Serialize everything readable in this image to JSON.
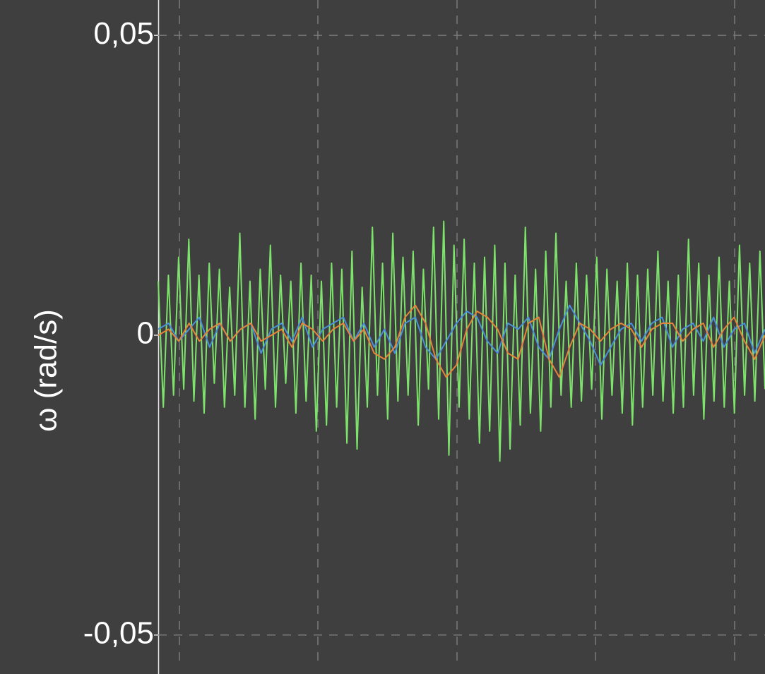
{
  "chart_data": {
    "type": "line",
    "y_label": "ω (rad/s)",
    "ylim": [
      -0.0565,
      0.0559
    ],
    "yticks": [
      {
        "value": 0.05,
        "label": "0,05"
      },
      0,
      {
        "value": -0.05,
        "label": "-0,05"
      }
    ],
    "grid": true,
    "series": [
      {
        "color": "#7de36b",
        "values": [
          0.009,
          -0.012,
          0.01,
          -0.01,
          0.013,
          -0.009,
          0.016,
          -0.011,
          0.01,
          -0.013,
          0.012,
          -0.008,
          0.011,
          -0.012,
          0.008,
          -0.01,
          0.017,
          -0.012,
          0.009,
          -0.014,
          0.011,
          -0.009,
          0.015,
          -0.012,
          0.01,
          -0.008,
          0.009,
          -0.013,
          0.012,
          -0.011,
          0.01,
          -0.016,
          0.009,
          -0.015,
          0.012,
          -0.012,
          0.011,
          -0.018,
          0.014,
          -0.019,
          0.008,
          -0.012,
          0.018,
          -0.01,
          0.012,
          -0.014,
          0.017,
          -0.011,
          0.013,
          -0.01,
          0.014,
          -0.015,
          0.011,
          -0.009,
          0.018,
          -0.014,
          0.019,
          -0.02,
          0.015,
          -0.012,
          0.016,
          -0.014,
          0.012,
          -0.018,
          0.013,
          -0.016,
          0.015,
          -0.021,
          0.012,
          -0.019,
          0.01,
          -0.015,
          0.018,
          -0.013,
          0.011,
          -0.016,
          0.014,
          -0.012,
          0.017,
          -0.01,
          0.009,
          -0.012,
          0.012,
          -0.011,
          0.01,
          -0.009,
          0.013,
          -0.014,
          0.011,
          -0.01,
          0.009,
          -0.013,
          0.012,
          -0.015,
          0.01,
          -0.012,
          0.011,
          -0.01,
          0.014,
          -0.011,
          0.009,
          -0.013,
          0.01,
          -0.012,
          0.016,
          -0.01,
          0.012,
          -0.014,
          0.01,
          -0.011,
          0.013,
          -0.012,
          0.009,
          -0.013,
          0.015,
          -0.01,
          0.012,
          -0.011,
          0.014,
          -0.009
        ]
      },
      {
        "color": "#4a90d9",
        "values": [
          0.001,
          0.002,
          -0.001,
          0.001,
          0.003,
          -0.002,
          0.002,
          -0.001,
          0.001,
          0.002,
          -0.003,
          0.001,
          0.002,
          -0.001,
          0.003,
          -0.002,
          0.001,
          0.002,
          0.003,
          -0.001,
          0.002,
          -0.002,
          0.001,
          -0.003,
          0.002,
          0.003,
          -0.002,
          -0.004,
          -0.001,
          0.002,
          0.004,
          0.003,
          -0.001,
          -0.003,
          0.002,
          0.001,
          0.003,
          -0.002,
          -0.004,
          0.001,
          0.005,
          0.002,
          -0.001,
          -0.005,
          -0.002,
          0.001,
          0.002,
          -0.001,
          0.002,
          0.003,
          -0.002,
          0.001,
          0.002,
          -0.001,
          0.003,
          -0.002,
          0.001,
          0.002,
          -0.003,
          0.001
        ]
      },
      {
        "color": "#e6853a",
        "values": [
          0,
          0.001,
          -0.001,
          0.002,
          -0.001,
          0.001,
          0.002,
          -0.001,
          0.001,
          0.002,
          -0.001,
          0,
          0.001,
          -0.002,
          0.002,
          0.001,
          -0.001,
          0.001,
          0.002,
          -0.001,
          0.001,
          -0.003,
          -0.004,
          -0.002,
          0.003,
          0.005,
          0.002,
          -0.004,
          -0.007,
          -0.005,
          0.001,
          0.004,
          0.003,
          0.001,
          -0.003,
          -0.004,
          0.002,
          0.003,
          -0.004,
          -0.007,
          -0.002,
          0.002,
          0.001,
          -0.001,
          0.001,
          0.002,
          0.001,
          -0.002,
          0.001,
          0.002,
          0.002,
          -0.001,
          0.001,
          0.002,
          -0.002,
          0.001,
          0.003,
          -0.001,
          -0.004,
          0
        ]
      }
    ]
  }
}
